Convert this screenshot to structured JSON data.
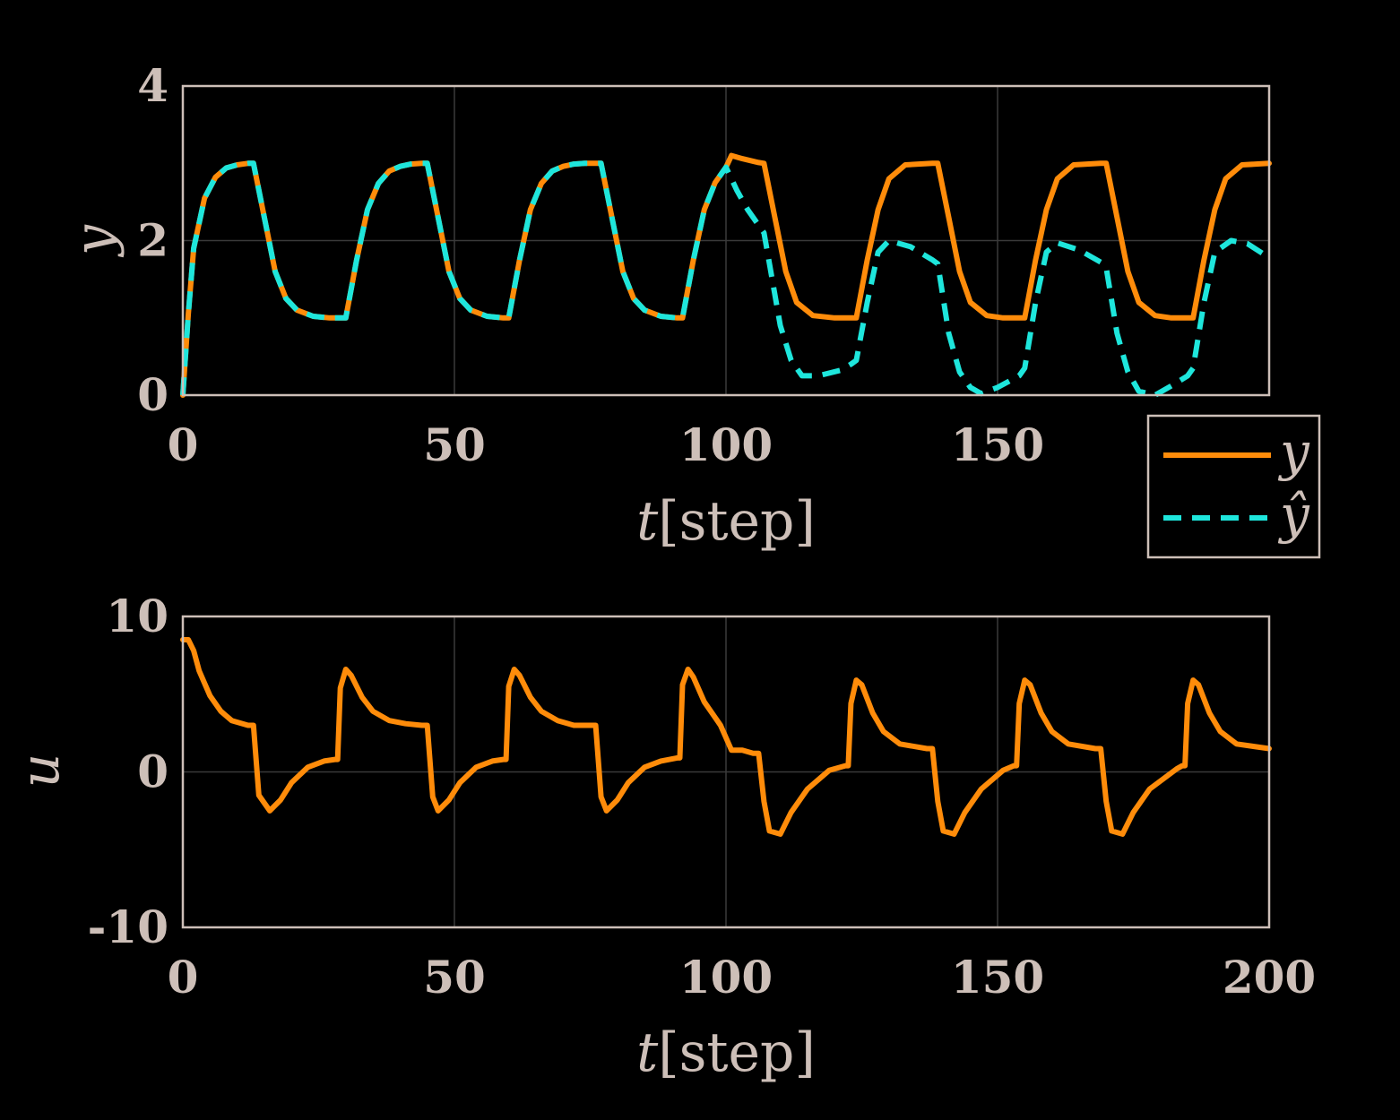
{
  "colors": {
    "y": "#ff8c0a",
    "yhat": "#1ee6dc",
    "text": "#cdbfb8",
    "grid": "#3a3a3a",
    "background": "#000000"
  },
  "chart_data": [
    {
      "type": "line",
      "title": "",
      "xlabel_var": "t",
      "xlabel_unit": "[step]",
      "ylabel": "y",
      "xlim": [
        0,
        200
      ],
      "ylim": [
        0,
        4
      ],
      "xticks": [
        "0",
        "50",
        "100",
        "150"
      ],
      "yticks": [
        "0",
        "2",
        "4"
      ],
      "grid": true,
      "legend_position": "outside-bottom-right",
      "legend": [
        "y",
        "ŷ"
      ],
      "series": [
        {
          "name": "y",
          "style": "solid",
          "color": "#ff8c0a",
          "x": [
            0,
            1,
            2,
            4,
            6,
            8,
            10,
            12,
            13,
            15,
            17,
            19,
            21,
            24,
            27,
            29,
            30,
            32,
            34,
            36,
            38,
            40,
            42,
            44,
            45,
            47,
            49,
            51,
            53,
            56,
            59,
            60,
            62,
            64,
            66,
            68,
            70,
            72,
            74,
            76,
            77,
            79,
            81,
            83,
            85,
            88,
            91,
            92,
            94,
            96,
            98,
            100,
            101,
            103,
            106,
            107,
            109,
            111,
            113,
            116,
            120,
            123,
            124,
            126,
            128,
            130,
            133,
            138,
            139,
            141,
            143,
            145,
            148,
            151,
            154,
            155,
            157,
            159,
            161,
            164,
            169,
            170,
            172,
            174,
            176,
            179,
            182,
            185,
            186,
            188,
            190,
            192,
            195,
            200
          ],
          "y": [
            0,
            1.05,
            1.9,
            2.55,
            2.82,
            2.94,
            2.98,
            3.0,
            3.0,
            2.3,
            1.6,
            1.25,
            1.1,
            1.02,
            1.0,
            1.0,
            1.0,
            1.75,
            2.4,
            2.74,
            2.9,
            2.96,
            2.99,
            3.0,
            3.0,
            2.3,
            1.6,
            1.25,
            1.1,
            1.02,
            1.0,
            1.0,
            1.75,
            2.4,
            2.74,
            2.9,
            2.96,
            2.99,
            3.0,
            3.0,
            3.0,
            2.3,
            1.6,
            1.25,
            1.1,
            1.02,
            1.0,
            1.0,
            1.75,
            2.4,
            2.75,
            2.95,
            3.1,
            3.06,
            3.01,
            3.0,
            2.3,
            1.6,
            1.2,
            1.03,
            1.0,
            1.0,
            1.0,
            1.75,
            2.4,
            2.8,
            2.98,
            3.0,
            3.0,
            2.3,
            1.6,
            1.2,
            1.03,
            1.0,
            1.0,
            1.0,
            1.75,
            2.4,
            2.8,
            2.98,
            3.0,
            3.0,
            2.3,
            1.6,
            1.2,
            1.03,
            1.0,
            1.0,
            1.0,
            1.75,
            2.4,
            2.8,
            2.98,
            3.0
          ]
        },
        {
          "name": "ŷ",
          "style": "dashed",
          "color": "#1ee6dc",
          "x": [
            0,
            1,
            2,
            4,
            6,
            8,
            10,
            12,
            13,
            15,
            17,
            19,
            21,
            24,
            27,
            29,
            30,
            32,
            34,
            36,
            38,
            40,
            42,
            44,
            45,
            47,
            49,
            51,
            53,
            56,
            59,
            60,
            62,
            64,
            66,
            68,
            70,
            72,
            74,
            76,
            77,
            79,
            81,
            83,
            85,
            88,
            91,
            92,
            94,
            96,
            98,
            100,
            102,
            104,
            107,
            108,
            110,
            112,
            114,
            117,
            121,
            123,
            124,
            126,
            128,
            130,
            134,
            138,
            139,
            141,
            143,
            145,
            147,
            150,
            154,
            155,
            157,
            159,
            161,
            165,
            169,
            170,
            172,
            174,
            176,
            179,
            182,
            185,
            186,
            188,
            190,
            193,
            196,
            200
          ],
          "y": [
            0,
            1.05,
            1.9,
            2.55,
            2.82,
            2.94,
            2.98,
            3.0,
            3.0,
            2.3,
            1.6,
            1.25,
            1.1,
            1.02,
            1.0,
            1.0,
            1.0,
            1.75,
            2.4,
            2.74,
            2.9,
            2.96,
            2.99,
            3.0,
            3.0,
            2.3,
            1.6,
            1.25,
            1.1,
            1.02,
            1.0,
            1.0,
            1.75,
            2.4,
            2.74,
            2.9,
            2.96,
            2.99,
            3.0,
            3.0,
            3.0,
            2.3,
            1.6,
            1.25,
            1.1,
            1.02,
            1.0,
            1.0,
            1.75,
            2.4,
            2.75,
            2.95,
            2.65,
            2.4,
            2.1,
            1.7,
            0.9,
            0.45,
            0.25,
            0.25,
            0.32,
            0.4,
            0.45,
            1.2,
            1.85,
            2.0,
            1.92,
            1.75,
            1.7,
            0.8,
            0.3,
            0.1,
            0.02,
            0.1,
            0.25,
            0.35,
            1.2,
            1.85,
            1.97,
            1.88,
            1.72,
            1.65,
            0.8,
            0.3,
            0.05,
            0.0,
            0.12,
            0.25,
            0.35,
            1.2,
            1.85,
            2.0,
            1.96,
            1.78
          ]
        }
      ]
    },
    {
      "type": "line",
      "title": "",
      "xlabel_var": "t",
      "xlabel_unit": "[step]",
      "ylabel": "u",
      "xlim": [
        0,
        200
      ],
      "ylim": [
        -10,
        10
      ],
      "xticks": [
        "0",
        "50",
        "100",
        "150",
        "200"
      ],
      "yticks": [
        "-10",
        "0",
        "10"
      ],
      "grid": true,
      "series": [
        {
          "name": "u",
          "style": "solid",
          "color": "#ff8c0a",
          "x": [
            0,
            1,
            2,
            3,
            5,
            7,
            9,
            12,
            13,
            14,
            16,
            18,
            20,
            23,
            26,
            28,
            28.5,
            29,
            30,
            31,
            33,
            35,
            38,
            41,
            44,
            45,
            46,
            47,
            49,
            51,
            54,
            57,
            59,
            59.5,
            60,
            61,
            62,
            64,
            66,
            69,
            72,
            75,
            76,
            77,
            78,
            80,
            82,
            85,
            88,
            91,
            91.5,
            92,
            93,
            94,
            96,
            98,
            99,
            100,
            101,
            103,
            105,
            106,
            107,
            108,
            110,
            112,
            115,
            119,
            122,
            122.5,
            123,
            124,
            125,
            127,
            129,
            132,
            137,
            138,
            139,
            140,
            142,
            144,
            147,
            151,
            153,
            153.5,
            154,
            155,
            156,
            158,
            160,
            163,
            168,
            169,
            170,
            171,
            173,
            175,
            178,
            183,
            184,
            184.5,
            185,
            186,
            187,
            189,
            191,
            194,
            200
          ],
          "y": [
            8.5,
            8.5,
            7.8,
            6.5,
            4.9,
            3.9,
            3.3,
            3.0,
            3.0,
            -1.5,
            -2.5,
            -1.8,
            -0.7,
            0.3,
            0.7,
            0.8,
            0.8,
            5.4,
            6.6,
            6.2,
            4.8,
            3.9,
            3.3,
            3.1,
            3.0,
            3.0,
            -1.6,
            -2.5,
            -1.8,
            -0.7,
            0.3,
            0.7,
            0.8,
            0.8,
            5.5,
            6.6,
            6.2,
            4.8,
            3.9,
            3.3,
            3.0,
            3.0,
            3.0,
            -1.6,
            -2.5,
            -1.8,
            -0.7,
            0.3,
            0.7,
            0.9,
            0.9,
            5.6,
            6.6,
            6.1,
            4.5,
            3.5,
            3.0,
            2.2,
            1.4,
            1.4,
            1.2,
            1.2,
            -1.9,
            -3.8,
            -4.0,
            -2.6,
            -1.1,
            0.1,
            0.4,
            0.4,
            4.4,
            5.9,
            5.6,
            3.8,
            2.6,
            1.8,
            1.5,
            1.5,
            -1.9,
            -3.8,
            -4.0,
            -2.6,
            -1.1,
            0.1,
            0.4,
            0.4,
            4.4,
            5.9,
            5.6,
            3.8,
            2.6,
            1.8,
            1.5,
            1.5,
            -1.9,
            -3.8,
            -4.0,
            -2.6,
            -1.1,
            0.2,
            0.4,
            0.4,
            4.4,
            5.9,
            5.6,
            3.8,
            2.6,
            1.8,
            1.5
          ]
        }
      ]
    }
  ]
}
